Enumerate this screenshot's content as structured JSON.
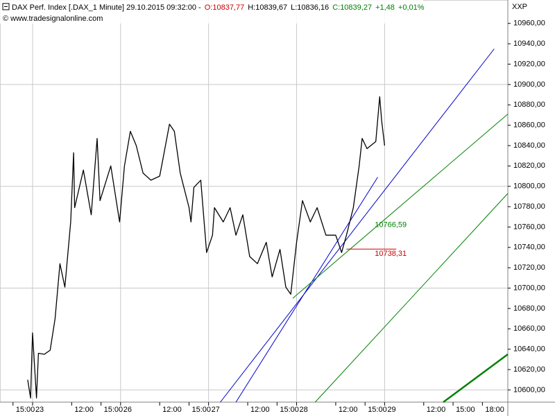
{
  "chart_data": {
    "type": "line",
    "title": "DAX Perf. Index [.DAX_1 Minute] 29.10.2015 09:32:00 -",
    "quote": [
      {
        "text": "O:10837,77",
        "color": "#cc0000"
      },
      {
        "text": "H:10839,67",
        "color": "#000000"
      },
      {
        "text": "L:10836,16",
        "color": "#000000"
      },
      {
        "text": "C:10839,27",
        "color": "#008000"
      },
      {
        "text": "+1,48",
        "color": "#008000"
      },
      {
        "text": "+0,01%",
        "color": "#008000"
      }
    ],
    "source": "© www.tradesignalonline.com",
    "axis_unit": "XXP",
    "color": "#000000",
    "x": [
      8.5,
      8.8,
      9.0,
      9.4,
      9.6,
      10.2,
      10.8,
      11.3,
      11.8,
      12.3,
      12.9,
      13.2,
      13.3,
      14.2,
      15.0,
      15.6,
      15.9,
      17.0,
      17.9,
      18.4,
      19.0,
      19.6,
      20.3,
      21.1,
      22.0,
      23.0,
      23.5,
      24.1,
      25.0,
      25.2,
      25.5,
      26.2,
      26.8,
      27.4,
      27.6,
      28.5,
      29.2,
      29.8,
      30.5,
      31.2,
      32.0,
      32.9,
      33.5,
      34.3,
      34.9,
      35.4,
      36.0,
      36.6,
      37.4,
      38.1,
      39.0,
      40.0,
      40.6,
      41.1,
      41.8,
      42.4,
      42.7,
      43.2,
      44.1,
      44.5,
      44.7,
      45.0
    ],
    "values": [
      10610,
      10592,
      10656,
      10592,
      10636,
      10635,
      10639,
      10670,
      10724,
      10701,
      10765,
      10833,
      10779,
      10816,
      10772,
      10847,
      10786,
      10820,
      10765,
      10820,
      10854,
      10840,
      10813,
      10806,
      10810,
      10861,
      10854,
      10813,
      10779,
      10765,
      10799,
      10806,
      10735,
      10752,
      10779,
      10765,
      10779,
      10752,
      10772,
      10731,
      10724,
      10745,
      10711,
      10738,
      10701,
      10694,
      10745,
      10786,
      10765,
      10779,
      10752,
      10752,
      10735,
      10752,
      10779,
      10820,
      10847,
      10837,
      10844,
      10888,
      10864,
      10840
    ],
    "lines": [
      {
        "x": [
          28.2,
          56.2
        ],
        "values": [
          10588,
          10935
        ],
        "color": "#0000cc",
        "width": 1
      },
      {
        "x": [
          29.8,
          44.3
        ],
        "values": [
          10588,
          10809
        ],
        "color": "#0000cc",
        "width": 1
      },
      {
        "x": [
          35.6,
          57.6
        ],
        "values": [
          10690,
          10871
        ],
        "color": "#008000",
        "width": 1
      },
      {
        "x": [
          37.9,
          57.6
        ],
        "values": [
          10588,
          10793
        ],
        "color": "#008000",
        "width": 1
      },
      {
        "x": [
          51.0,
          57.6
        ],
        "values": [
          10588,
          10635
        ],
        "color": "#008000",
        "width": 2.5
      },
      {
        "x": [
          41.1,
          46.2
        ],
        "values": [
          10738.31,
          10738.31
        ],
        "color": "#cc0000",
        "width": 1
      }
    ],
    "annotations": [
      {
        "x": 44.0,
        "value": 10766.59,
        "label": "10766,59",
        "color": "#008000"
      },
      {
        "x": 44.0,
        "value": 10738.31,
        "label": "10738,31",
        "color": "#cc0000"
      }
    ],
    "xlim": [
      5.67,
      57.6
    ],
    "xticks": [
      {
        "value": 7,
        "label": "15:00"
      },
      {
        "value": 9,
        "label": "23"
      },
      {
        "value": 13,
        "label": "12:00"
      },
      {
        "value": 16,
        "label": "15:00"
      },
      {
        "value": 18,
        "label": "26"
      },
      {
        "value": 22,
        "label": "12:00"
      },
      {
        "value": 25,
        "label": "15:00"
      },
      {
        "value": 27,
        "label": "27"
      },
      {
        "value": 31,
        "label": "12:00"
      },
      {
        "value": 34,
        "label": "15:00"
      },
      {
        "value": 36,
        "label": "28"
      },
      {
        "value": 40,
        "label": "12:00"
      },
      {
        "value": 43,
        "label": "15:00"
      },
      {
        "value": 45,
        "label": "29"
      },
      {
        "value": 49,
        "label": "12:00"
      },
      {
        "value": 52,
        "label": "15:00"
      },
      {
        "value": 55,
        "label": "18:00"
      }
    ],
    "ylim": [
      10588,
      10983
    ],
    "yticks": [
      {
        "value": 10600,
        "label": "10600,00"
      },
      {
        "value": 10620,
        "label": "10620,00"
      },
      {
        "value": 10640,
        "label": "10640,00"
      },
      {
        "value": 10660,
        "label": "10660,00"
      },
      {
        "value": 10680,
        "label": "10680,00"
      },
      {
        "value": 10700,
        "label": "10700,00"
      },
      {
        "value": 10720,
        "label": "10720,00"
      },
      {
        "value": 10740,
        "label": "10740,00"
      },
      {
        "value": 10760,
        "label": "10760,00"
      },
      {
        "value": 10780,
        "label": "10780,00"
      },
      {
        "value": 10800,
        "label": "10800,00"
      },
      {
        "value": 10820,
        "label": "10820,00"
      },
      {
        "value": 10840,
        "label": "10840,00"
      },
      {
        "value": 10860,
        "label": "10860,00"
      },
      {
        "value": 10880,
        "label": "10880,00"
      },
      {
        "value": 10900,
        "label": "10900,00"
      },
      {
        "value": 10920,
        "label": "10920,00"
      },
      {
        "value": 10940,
        "label": "10940,00"
      },
      {
        "value": 10960,
        "label": "10960,00"
      }
    ],
    "grid": true
  }
}
